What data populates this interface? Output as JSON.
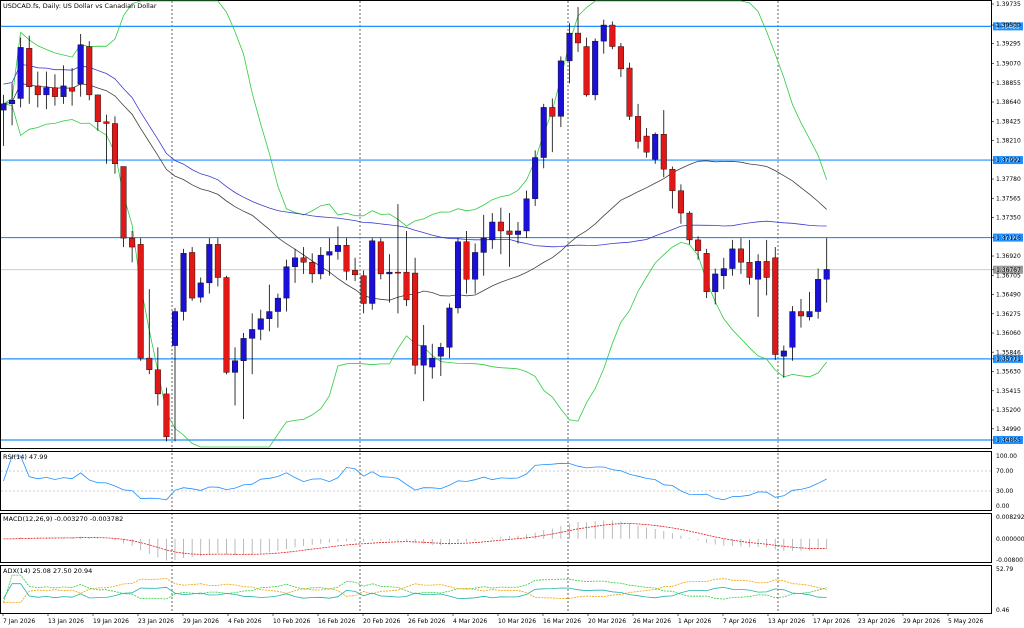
{
  "title": "USDCAD.fs, Daily: US Dollar vs Canadian Dollar",
  "current_price": "1.36767",
  "colors": {
    "bull": "#1a10d8",
    "bear": "#e01818",
    "grid_border": "#000000",
    "hline": "#1e90ff",
    "ma_slow": "#3b3bd0",
    "ma_fast": "#404040",
    "bollinger": "#2ecc40",
    "tag_bg": "#1e90ff",
    "rsi": "#1e90ff",
    "macd_signal": "#e01818",
    "adx_main": "#20b2aa",
    "adx_plus": "#2ecc40",
    "adx_minus": "#f0a000"
  },
  "price_axis": [
    "1.39735",
    "1.39500",
    "1.39295",
    "1.39070",
    "1.38855",
    "1.38640",
    "1.38425",
    "1.38210",
    "1.37992",
    "1.37780",
    "1.37565",
    "1.37350",
    "1.37126",
    "1.36920",
    "1.36767",
    "1.36705",
    "1.36490",
    "1.36275",
    "1.36060",
    "1.35846",
    "1.35771",
    "1.35630",
    "1.35415",
    "1.35200",
    "1.34990",
    "1.34865"
  ],
  "hlines": [
    {
      "label": "1.39485",
      "price": 1.39485
    },
    {
      "label": "1.37992",
      "price": 1.37992
    },
    {
      "label": "1.37126",
      "price": 1.37126
    },
    {
      "label": "1.35771",
      "price": 1.35771
    },
    {
      "label": "1.34865",
      "price": 1.34865
    }
  ],
  "date_axis": [
    "7 Jan 2026",
    "13 Jan 2026",
    "19 Jan 2026",
    "23 Jan 2026",
    "29 Jan 2026",
    "4 Feb 2026",
    "10 Feb 2026",
    "16 Feb 2026",
    "20 Feb 2026",
    "26 Feb 2026",
    "4 Mar 2026",
    "10 Mar 2026",
    "16 Mar 2026",
    "20 Mar 2026",
    "26 Mar 2026",
    "1 Apr 2026",
    "7 Apr 2026",
    "13 Apr 2026",
    "17 Apr 2026",
    "23 Apr 2026",
    "29 Apr 2026",
    "5 May 2026"
  ],
  "rsi": {
    "label": "RSI(14) 47.99",
    "levels": [
      "100.00",
      "70.00",
      "30.00",
      "0.00"
    ]
  },
  "macd": {
    "label": "MACD(12,26,9) -0.003270 -0.003782",
    "levels": [
      "0.008292",
      "0.000000",
      "-0.008001"
    ]
  },
  "adx": {
    "label": "ADX(14) 25.08 27.50 20.94",
    "levels": [
      "52.79",
      "0.46"
    ]
  },
  "chart_data": {
    "type": "candlestick",
    "title": "USDCAD.fs, Daily: US Dollar vs Canadian Dollar",
    "ylim": [
      1.34865,
      1.39735
    ],
    "candles": [
      {
        "o": 1.3855,
        "h": 1.3872,
        "l": 1.3815,
        "c": 1.3862
      },
      {
        "o": 1.3862,
        "h": 1.3885,
        "l": 1.3838,
        "c": 1.3866
      },
      {
        "o": 1.3868,
        "h": 1.3936,
        "l": 1.3858,
        "c": 1.3925
      },
      {
        "o": 1.3924,
        "h": 1.3938,
        "l": 1.3862,
        "c": 1.3881
      },
      {
        "o": 1.3882,
        "h": 1.3898,
        "l": 1.3858,
        "c": 1.3872
      },
      {
        "o": 1.3872,
        "h": 1.3898,
        "l": 1.3856,
        "c": 1.388
      },
      {
        "o": 1.388,
        "h": 1.3895,
        "l": 1.386,
        "c": 1.387
      },
      {
        "o": 1.387,
        "h": 1.3905,
        "l": 1.3862,
        "c": 1.3882
      },
      {
        "o": 1.388,
        "h": 1.3902,
        "l": 1.386,
        "c": 1.3876
      },
      {
        "o": 1.3884,
        "h": 1.394,
        "l": 1.387,
        "c": 1.3928
      },
      {
        "o": 1.3926,
        "h": 1.3932,
        "l": 1.3866,
        "c": 1.3872
      },
      {
        "o": 1.3872,
        "h": 1.3872,
        "l": 1.3832,
        "c": 1.3842
      },
      {
        "o": 1.3842,
        "h": 1.385,
        "l": 1.3795,
        "c": 1.384
      },
      {
        "o": 1.384,
        "h": 1.3848,
        "l": 1.3784,
        "c": 1.3795
      },
      {
        "o": 1.3792,
        "h": 1.3792,
        "l": 1.3702,
        "c": 1.3712
      },
      {
        "o": 1.3712,
        "h": 1.372,
        "l": 1.3685,
        "c": 1.3702
      },
      {
        "o": 1.3705,
        "h": 1.3712,
        "l": 1.3575,
        "c": 1.3578
      },
      {
        "o": 1.3578,
        "h": 1.3655,
        "l": 1.356,
        "c": 1.3565
      },
      {
        "o": 1.3565,
        "h": 1.359,
        "l": 1.3525,
        "c": 1.3538
      },
      {
        "o": 1.3538,
        "h": 1.3545,
        "l": 1.3485,
        "c": 1.349
      },
      {
        "o": 1.3592,
        "h": 1.3634,
        "l": 1.3485,
        "c": 1.363
      },
      {
        "o": 1.363,
        "h": 1.37,
        "l": 1.362,
        "c": 1.3695
      },
      {
        "o": 1.3696,
        "h": 1.3702,
        "l": 1.3642,
        "c": 1.3645
      },
      {
        "o": 1.3646,
        "h": 1.3668,
        "l": 1.364,
        "c": 1.3662
      },
      {
        "o": 1.3662,
        "h": 1.3712,
        "l": 1.365,
        "c": 1.3705
      },
      {
        "o": 1.3705,
        "h": 1.3712,
        "l": 1.3658,
        "c": 1.3668
      },
      {
        "o": 1.3668,
        "h": 1.367,
        "l": 1.356,
        "c": 1.3562
      },
      {
        "o": 1.3562,
        "h": 1.359,
        "l": 1.3525,
        "c": 1.3575
      },
      {
        "o": 1.3575,
        "h": 1.3606,
        "l": 1.351,
        "c": 1.36
      },
      {
        "o": 1.36,
        "h": 1.3628,
        "l": 1.356,
        "c": 1.361
      },
      {
        "o": 1.361,
        "h": 1.3632,
        "l": 1.3598,
        "c": 1.3622
      },
      {
        "o": 1.3622,
        "h": 1.366,
        "l": 1.3608,
        "c": 1.363
      },
      {
        "o": 1.363,
        "h": 1.365,
        "l": 1.3612,
        "c": 1.3645
      },
      {
        "o": 1.3645,
        "h": 1.3688,
        "l": 1.363,
        "c": 1.368
      },
      {
        "o": 1.368,
        "h": 1.37,
        "l": 1.3662,
        "c": 1.369
      },
      {
        "o": 1.369,
        "h": 1.3702,
        "l": 1.3672,
        "c": 1.3685
      },
      {
        "o": 1.3685,
        "h": 1.3695,
        "l": 1.3662,
        "c": 1.3672
      },
      {
        "o": 1.3672,
        "h": 1.3702,
        "l": 1.3666,
        "c": 1.3693
      },
      {
        "o": 1.3693,
        "h": 1.3712,
        "l": 1.367,
        "c": 1.3697
      },
      {
        "o": 1.3697,
        "h": 1.3725,
        "l": 1.3688,
        "c": 1.3704
      },
      {
        "o": 1.3704,
        "h": 1.3712,
        "l": 1.3665,
        "c": 1.3675
      },
      {
        "o": 1.3676,
        "h": 1.369,
        "l": 1.3664,
        "c": 1.3671
      },
      {
        "o": 1.367,
        "h": 1.3676,
        "l": 1.3628,
        "c": 1.3639
      },
      {
        "o": 1.3639,
        "h": 1.3712,
        "l": 1.3632,
        "c": 1.3709
      },
      {
        "o": 1.3708,
        "h": 1.3712,
        "l": 1.3666,
        "c": 1.3672
      },
      {
        "o": 1.3672,
        "h": 1.3694,
        "l": 1.364,
        "c": 1.3674
      },
      {
        "o": 1.3674,
        "h": 1.375,
        "l": 1.3628,
        "c": 1.3673
      },
      {
        "o": 1.3674,
        "h": 1.372,
        "l": 1.3636,
        "c": 1.3643
      },
      {
        "o": 1.3673,
        "h": 1.369,
        "l": 1.356,
        "c": 1.357
      },
      {
        "o": 1.357,
        "h": 1.3615,
        "l": 1.353,
        "c": 1.3592
      },
      {
        "o": 1.3568,
        "h": 1.3594,
        "l": 1.3555,
        "c": 1.3578
      },
      {
        "o": 1.358,
        "h": 1.3595,
        "l": 1.3558,
        "c": 1.359
      },
      {
        "o": 1.359,
        "h": 1.3639,
        "l": 1.3578,
        "c": 1.3634
      },
      {
        "o": 1.3634,
        "h": 1.3712,
        "l": 1.3628,
        "c": 1.3708
      },
      {
        "o": 1.3708,
        "h": 1.372,
        "l": 1.365,
        "c": 1.3666
      },
      {
        "o": 1.3666,
        "h": 1.3706,
        "l": 1.365,
        "c": 1.3696
      },
      {
        "o": 1.3696,
        "h": 1.3738,
        "l": 1.367,
        "c": 1.3712
      },
      {
        "o": 1.371,
        "h": 1.374,
        "l": 1.37,
        "c": 1.373
      },
      {
        "o": 1.373,
        "h": 1.3746,
        "l": 1.3694,
        "c": 1.372
      },
      {
        "o": 1.372,
        "h": 1.374,
        "l": 1.368,
        "c": 1.3716
      },
      {
        "o": 1.3716,
        "h": 1.373,
        "l": 1.3706,
        "c": 1.372
      },
      {
        "o": 1.372,
        "h": 1.3765,
        "l": 1.3712,
        "c": 1.3756
      },
      {
        "o": 1.3756,
        "h": 1.381,
        "l": 1.3748,
        "c": 1.3802
      },
      {
        "o": 1.3802,
        "h": 1.3862,
        "l": 1.379,
        "c": 1.3858
      },
      {
        "o": 1.3858,
        "h": 1.3868,
        "l": 1.3808,
        "c": 1.3848
      },
      {
        "o": 1.3848,
        "h": 1.3915,
        "l": 1.3836,
        "c": 1.391
      },
      {
        "o": 1.391,
        "h": 1.3952,
        "l": 1.3885,
        "c": 1.3941
      },
      {
        "o": 1.3941,
        "h": 1.397,
        "l": 1.392,
        "c": 1.393
      },
      {
        "o": 1.3926,
        "h": 1.3936,
        "l": 1.387,
        "c": 1.3872
      },
      {
        "o": 1.3872,
        "h": 1.3935,
        "l": 1.3866,
        "c": 1.3932
      },
      {
        "o": 1.3932,
        "h": 1.3956,
        "l": 1.3918,
        "c": 1.395
      },
      {
        "o": 1.395,
        "h": 1.3954,
        "l": 1.3923,
        "c": 1.3926
      },
      {
        "o": 1.3926,
        "h": 1.393,
        "l": 1.3892,
        "c": 1.3901
      },
      {
        "o": 1.3902,
        "h": 1.3908,
        "l": 1.3844,
        "c": 1.3848
      },
      {
        "o": 1.3848,
        "h": 1.3862,
        "l": 1.3812,
        "c": 1.382
      },
      {
        "o": 1.3826,
        "h": 1.3835,
        "l": 1.3802,
        "c": 1.3808
      },
      {
        "o": 1.38,
        "h": 1.383,
        "l": 1.3795,
        "c": 1.3828
      },
      {
        "o": 1.3828,
        "h": 1.3855,
        "l": 1.378,
        "c": 1.3789
      },
      {
        "o": 1.3789,
        "h": 1.3792,
        "l": 1.3745,
        "c": 1.3765
      },
      {
        "o": 1.3765,
        "h": 1.3772,
        "l": 1.3728,
        "c": 1.374
      },
      {
        "o": 1.374,
        "h": 1.3742,
        "l": 1.3705,
        "c": 1.371
      },
      {
        "o": 1.371,
        "h": 1.3714,
        "l": 1.3688,
        "c": 1.3698
      },
      {
        "o": 1.3695,
        "h": 1.37,
        "l": 1.3645,
        "c": 1.3652
      },
      {
        "o": 1.3652,
        "h": 1.3678,
        "l": 1.3638,
        "c": 1.3672
      },
      {
        "o": 1.367,
        "h": 1.369,
        "l": 1.3655,
        "c": 1.3678
      },
      {
        "o": 1.3678,
        "h": 1.371,
        "l": 1.367,
        "c": 1.37
      },
      {
        "o": 1.37,
        "h": 1.3712,
        "l": 1.3672,
        "c": 1.3685
      },
      {
        "o": 1.3685,
        "h": 1.371,
        "l": 1.366,
        "c": 1.3668
      },
      {
        "o": 1.3666,
        "h": 1.3694,
        "l": 1.3624,
        "c": 1.3686
      },
      {
        "o": 1.3686,
        "h": 1.371,
        "l": 1.3648,
        "c": 1.3668
      },
      {
        "o": 1.369,
        "h": 1.3702,
        "l": 1.3576,
        "c": 1.3582
      },
      {
        "o": 1.358,
        "h": 1.3592,
        "l": 1.3556,
        "c": 1.3586
      },
      {
        "o": 1.359,
        "h": 1.3636,
        "l": 1.3575,
        "c": 1.363
      },
      {
        "o": 1.363,
        "h": 1.3644,
        "l": 1.3612,
        "c": 1.3625
      },
      {
        "o": 1.3624,
        "h": 1.3652,
        "l": 1.362,
        "c": 1.363
      },
      {
        "o": 1.363,
        "h": 1.3678,
        "l": 1.3622,
        "c": 1.3666
      },
      {
        "o": 1.3666,
        "h": 1.3712,
        "l": 1.364,
        "c": 1.3677
      }
    ]
  }
}
